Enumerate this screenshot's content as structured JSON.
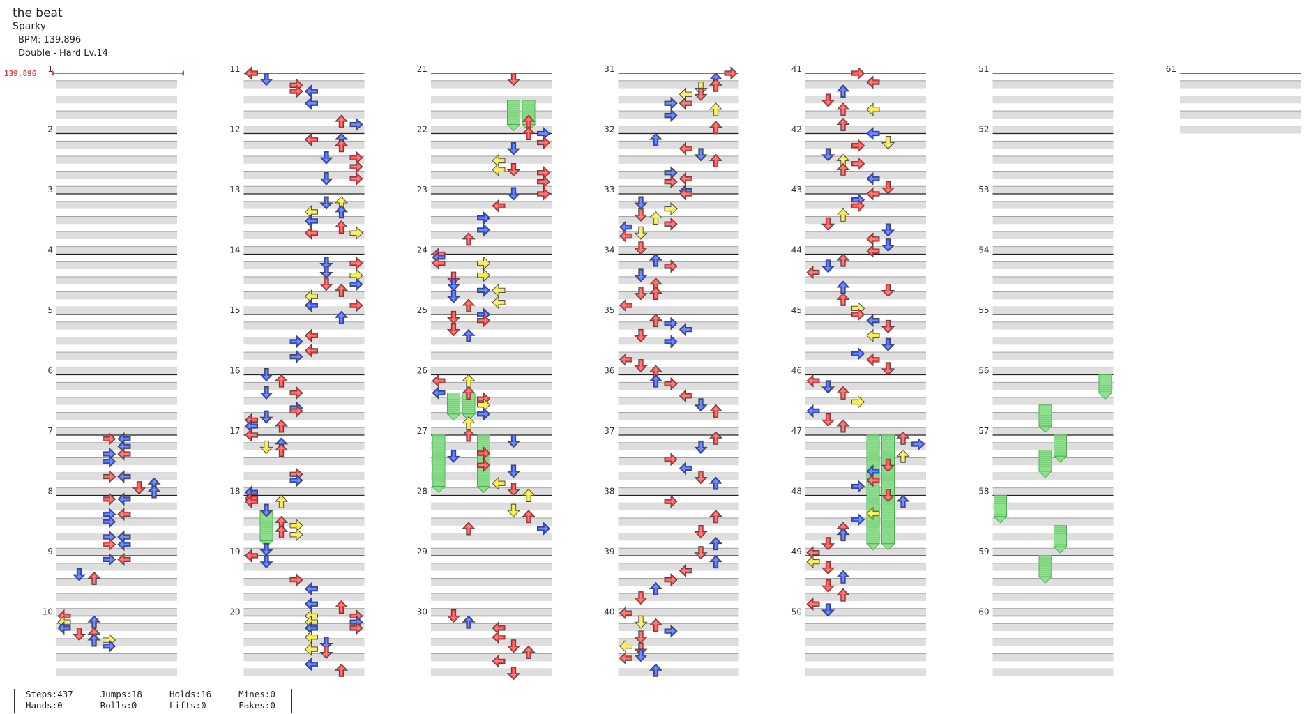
{
  "song": {
    "title": "the beat",
    "artist": "Sparky",
    "bpm_text": "BPM: 139.896",
    "difficulty_text": "Double - Hard  Lv.14"
  },
  "bpm_marker": "139.896",
  "measures": [
    "1",
    "2",
    "3",
    "4",
    "5",
    "6",
    "7",
    "8",
    "9",
    "10",
    "11",
    "12",
    "13",
    "14",
    "15",
    "16",
    "17",
    "18",
    "19",
    "20",
    "21",
    "22",
    "23",
    "24",
    "25",
    "26",
    "27",
    "28",
    "29",
    "30",
    "31",
    "32",
    "33",
    "34",
    "35",
    "36",
    "37",
    "38",
    "39",
    "40",
    "41",
    "42",
    "43",
    "44",
    "45",
    "46",
    "47",
    "48",
    "49",
    "50",
    "51",
    "52",
    "53",
    "54",
    "55",
    "56",
    "57",
    "58",
    "59",
    "60",
    "61"
  ],
  "stats": {
    "steps": "Steps:437",
    "hands": "Hands:0",
    "jumps": "Jumps:18",
    "rolls": "Rolls:0",
    "holds": "Holds:16",
    "lifts": "Lifts:0",
    "mines": "Mines:0",
    "fakes": "Fakes:0"
  },
  "colors": {
    "red": "#f03c3c",
    "blue": "#2f4fe6",
    "yellow": "#f2e83a",
    "hold": "#8ee08e",
    "band": "#dedede",
    "bpm": "#e53935"
  },
  "notes": [
    [
      7.0625,
      3,
      "red"
    ],
    [
      7.0625,
      4,
      "blue"
    ],
    [
      7.1875,
      4,
      "blue"
    ],
    [
      7.3125,
      3,
      "blue"
    ],
    [
      7.3125,
      4,
      "red"
    ],
    [
      7.4375,
      3,
      "blue"
    ],
    [
      7.6875,
      3,
      "red"
    ],
    [
      7.6875,
      4,
      "blue"
    ],
    [
      7.8125,
      6,
      "blue"
    ],
    [
      7.875,
      5,
      "red"
    ],
    [
      7.9375,
      6,
      "blue"
    ],
    [
      8.0625,
      3,
      "red"
    ],
    [
      8.0625,
      4,
      "blue"
    ],
    [
      8.3125,
      3,
      "blue"
    ],
    [
      8.3125,
      4,
      "red"
    ],
    [
      8.4375,
      3,
      "blue"
    ],
    [
      8.6875,
      3,
      "blue"
    ],
    [
      8.6875,
      4,
      "blue"
    ],
    [
      8.8125,
      3,
      "red"
    ],
    [
      8.8125,
      4,
      "blue"
    ],
    [
      9.0625,
      3,
      "blue"
    ],
    [
      9.0625,
      4,
      "red"
    ],
    [
      9.3125,
      1,
      "blue"
    ],
    [
      9.375,
      2,
      "red"
    ],
    [
      10.0,
      0,
      "red"
    ],
    [
      10.1,
      0,
      "yellow"
    ],
    [
      10.1,
      2,
      "blue"
    ],
    [
      10.2,
      0,
      "blue"
    ],
    [
      10.3,
      1,
      "red"
    ],
    [
      10.3,
      2,
      "red"
    ],
    [
      10.4,
      2,
      "blue"
    ],
    [
      10.4,
      3,
      "yellow"
    ],
    [
      10.5,
      3,
      "blue"
    ],
    [
      11.0,
      0,
      "red"
    ],
    [
      11.1,
      1,
      "blue"
    ],
    [
      11.2,
      3,
      "red"
    ],
    [
      11.3,
      3,
      "red"
    ],
    [
      11.3,
      4,
      "blue"
    ],
    [
      11.5,
      4,
      "blue"
    ],
    [
      11.8,
      6,
      "red"
    ],
    [
      11.85,
      7,
      "blue"
    ],
    [
      12.1,
      4,
      "red"
    ],
    [
      12.1,
      6,
      "blue"
    ],
    [
      12.2,
      6,
      "red"
    ],
    [
      12.4,
      5,
      "blue"
    ],
    [
      12.4,
      7,
      "red"
    ],
    [
      12.55,
      7,
      "red"
    ],
    [
      12.75,
      5,
      "blue"
    ],
    [
      12.75,
      7,
      "red"
    ],
    [
      13.15,
      5,
      "blue"
    ],
    [
      13.15,
      6,
      "yellow"
    ],
    [
      13.3,
      4,
      "yellow"
    ],
    [
      13.3,
      6,
      "blue"
    ],
    [
      13.45,
      4,
      "blue"
    ],
    [
      13.55,
      6,
      "red"
    ],
    [
      13.65,
      4,
      "red"
    ],
    [
      13.65,
      7,
      "yellow"
    ],
    [
      14.15,
      5,
      "blue"
    ],
    [
      14.15,
      7,
      "red"
    ],
    [
      14.3,
      5,
      "blue"
    ],
    [
      14.35,
      7,
      "yellow"
    ],
    [
      14.5,
      5,
      "red"
    ],
    [
      14.5,
      7,
      "blue"
    ],
    [
      14.6,
      6,
      "red"
    ],
    [
      14.7,
      4,
      "yellow"
    ],
    [
      14.85,
      4,
      "blue"
    ],
    [
      14.85,
      7,
      "red"
    ],
    [
      15.05,
      6,
      "blue"
    ],
    [
      15.35,
      4,
      "red"
    ],
    [
      15.45,
      3,
      "blue"
    ],
    [
      15.6,
      4,
      "red"
    ],
    [
      15.7,
      3,
      "blue"
    ],
    [
      16.0,
      1,
      "blue"
    ],
    [
      16.1,
      2,
      "red"
    ],
    [
      16.3,
      1,
      "blue"
    ],
    [
      16.3,
      3,
      "red"
    ],
    [
      16.55,
      3,
      "blue"
    ],
    [
      16.6,
      3,
      "red"
    ],
    [
      16.7,
      1,
      "blue"
    ],
    [
      16.75,
      0,
      "red"
    ],
    [
      16.85,
      0,
      "blue"
    ],
    [
      16.85,
      2,
      "red"
    ],
    [
      17.0,
      0,
      "red"
    ],
    [
      17.15,
      2,
      "blue"
    ],
    [
      17.2,
      1,
      "yellow"
    ],
    [
      17.25,
      2,
      "red"
    ],
    [
      17.65,
      3,
      "red"
    ],
    [
      17.75,
      3,
      "blue"
    ],
    [
      17.95,
      0,
      "blue"
    ],
    [
      18.05,
      0,
      "red"
    ],
    [
      18.1,
      2,
      "yellow"
    ],
    [
      18.1,
      0,
      "red"
    ],
    [
      18.25,
      1,
      "blue"
    ],
    [
      18.45,
      2,
      "red"
    ],
    [
      18.5,
      3,
      "yellow"
    ],
    [
      18.6,
      2,
      "red"
    ],
    [
      18.65,
      3,
      "yellow"
    ],
    [
      18.9,
      1,
      "blue"
    ],
    [
      19.0,
      0,
      "red"
    ],
    [
      19.1,
      1,
      "blue"
    ],
    [
      19.4,
      3,
      "red"
    ],
    [
      19.55,
      4,
      "blue"
    ],
    [
      19.8,
      4,
      "blue"
    ],
    [
      19.85,
      6,
      "red"
    ],
    [
      20.0,
      4,
      "yellow"
    ],
    [
      20.0,
      7,
      "red"
    ],
    [
      20.1,
      4,
      "yellow"
    ],
    [
      20.1,
      7,
      "blue"
    ],
    [
      20.2,
      4,
      "blue"
    ],
    [
      20.2,
      7,
      "red"
    ],
    [
      20.35,
      4,
      "yellow"
    ],
    [
      20.45,
      5,
      "blue"
    ],
    [
      20.55,
      4,
      "yellow"
    ],
    [
      20.6,
      5,
      "red"
    ],
    [
      20.8,
      4,
      "blue"
    ],
    [
      20.9,
      6,
      "red"
    ],
    [
      21.1,
      5,
      "red"
    ],
    [
      21.8,
      6,
      "red"
    ],
    [
      22.0,
      6,
      "red"
    ],
    [
      22.0,
      7,
      "blue"
    ],
    [
      22.15,
      7,
      "red"
    ],
    [
      22.25,
      5,
      "blue"
    ],
    [
      22.45,
      4,
      "yellow"
    ],
    [
      22.6,
      4,
      "yellow"
    ],
    [
      22.6,
      5,
      "red"
    ],
    [
      22.65,
      7,
      "red"
    ],
    [
      22.8,
      7,
      "red"
    ],
    [
      23.0,
      5,
      "blue"
    ],
    [
      23.0,
      7,
      "red"
    ],
    [
      23.2,
      4,
      "red"
    ],
    [
      23.4,
      3,
      "blue"
    ],
    [
      23.6,
      3,
      "blue"
    ],
    [
      23.75,
      2,
      "red"
    ],
    [
      24.0,
      0,
      "red"
    ],
    [
      24.05,
      0,
      "blue"
    ],
    [
      24.15,
      0,
      "red"
    ],
    [
      24.15,
      3,
      "yellow"
    ],
    [
      24.35,
      3,
      "yellow"
    ],
    [
      24.4,
      1,
      "red"
    ],
    [
      24.5,
      1,
      "blue"
    ],
    [
      24.6,
      3,
      "blue"
    ],
    [
      24.6,
      4,
      "yellow"
    ],
    [
      24.7,
      1,
      "blue"
    ],
    [
      24.8,
      4,
      "yellow"
    ],
    [
      24.85,
      2,
      "red"
    ],
    [
      25.0,
      3,
      "blue"
    ],
    [
      25.05,
      1,
      "red"
    ],
    [
      25.1,
      3,
      "red"
    ],
    [
      25.25,
      1,
      "red"
    ],
    [
      25.35,
      2,
      "blue"
    ],
    [
      26.1,
      0,
      "red"
    ],
    [
      26.1,
      2,
      "yellow"
    ],
    [
      26.3,
      0,
      "blue"
    ],
    [
      26.3,
      2,
      "red"
    ],
    [
      26.4,
      3,
      "red"
    ],
    [
      26.5,
      3,
      "yellow"
    ],
    [
      26.65,
      3,
      "blue"
    ],
    [
      26.8,
      2,
      "yellow"
    ],
    [
      27.0,
      2,
      "red"
    ],
    [
      27.1,
      5,
      "blue"
    ],
    [
      27.3,
      3,
      "red"
    ],
    [
      27.35,
      1,
      "blue"
    ],
    [
      27.5,
      3,
      "red"
    ],
    [
      27.6,
      5,
      "blue"
    ],
    [
      27.8,
      4,
      "yellow"
    ],
    [
      27.9,
      5,
      "red"
    ],
    [
      28.0,
      6,
      "yellow"
    ],
    [
      28.25,
      5,
      "yellow"
    ],
    [
      28.35,
      6,
      "red"
    ],
    [
      28.55,
      7,
      "blue"
    ],
    [
      28.55,
      2,
      "red"
    ],
    [
      30.0,
      1,
      "red"
    ],
    [
      30.1,
      2,
      "blue"
    ],
    [
      30.2,
      4,
      "red"
    ],
    [
      30.35,
      4,
      "red"
    ],
    [
      30.5,
      5,
      "red"
    ],
    [
      30.6,
      6,
      "red"
    ],
    [
      30.75,
      4,
      "red"
    ],
    [
      30.95,
      5,
      "red"
    ],
    [
      31.0,
      7,
      "red"
    ],
    [
      31.1,
      6,
      "blue"
    ],
    [
      31.2,
      6,
      "red"
    ],
    [
      31.25,
      5,
      "yellow"
    ],
    [
      31.35,
      4,
      "yellow"
    ],
    [
      31.35,
      5,
      "red"
    ],
    [
      31.5,
      3,
      "blue"
    ],
    [
      31.5,
      4,
      "red"
    ],
    [
      31.6,
      6,
      "yellow"
    ],
    [
      31.7,
      3,
      "blue"
    ],
    [
      31.9,
      6,
      "red"
    ],
    [
      32.1,
      2,
      "blue"
    ],
    [
      32.25,
      4,
      "red"
    ],
    [
      32.35,
      5,
      "blue"
    ],
    [
      32.45,
      6,
      "red"
    ],
    [
      32.65,
      3,
      "blue"
    ],
    [
      32.75,
      4,
      "red"
    ],
    [
      32.8,
      3,
      "red"
    ],
    [
      32.95,
      4,
      "blue"
    ],
    [
      33.0,
      4,
      "red"
    ],
    [
      33.15,
      1,
      "blue"
    ],
    [
      33.25,
      3,
      "yellow"
    ],
    [
      33.35,
      1,
      "red"
    ],
    [
      33.4,
      2,
      "yellow"
    ],
    [
      33.5,
      3,
      "red"
    ],
    [
      33.55,
      0,
      "blue"
    ],
    [
      33.65,
      1,
      "yellow"
    ],
    [
      33.7,
      0,
      "red"
    ],
    [
      33.9,
      1,
      "red"
    ],
    [
      34.1,
      2,
      "blue"
    ],
    [
      34.2,
      3,
      "red"
    ],
    [
      34.35,
      1,
      "blue"
    ],
    [
      34.5,
      2,
      "red"
    ],
    [
      34.65,
      1,
      "red"
    ],
    [
      34.65,
      2,
      "red"
    ],
    [
      34.85,
      0,
      "red"
    ],
    [
      35.1,
      2,
      "red"
    ],
    [
      35.15,
      3,
      "blue"
    ],
    [
      35.25,
      4,
      "blue"
    ],
    [
      35.35,
      1,
      "red"
    ],
    [
      35.45,
      3,
      "blue"
    ],
    [
      35.75,
      0,
      "red"
    ],
    [
      35.85,
      1,
      "red"
    ],
    [
      35.95,
      2,
      "red"
    ],
    [
      36.1,
      2,
      "blue"
    ],
    [
      36.15,
      3,
      "red"
    ],
    [
      36.35,
      4,
      "red"
    ],
    [
      36.5,
      5,
      "blue"
    ],
    [
      36.6,
      6,
      "red"
    ],
    [
      37.05,
      6,
      "red"
    ],
    [
      37.2,
      5,
      "blue"
    ],
    [
      37.4,
      3,
      "red"
    ],
    [
      37.55,
      4,
      "blue"
    ],
    [
      37.7,
      5,
      "red"
    ],
    [
      37.8,
      6,
      "blue"
    ],
    [
      38.1,
      3,
      "red"
    ],
    [
      38.35,
      6,
      "red"
    ],
    [
      38.6,
      5,
      "red"
    ],
    [
      38.8,
      6,
      "blue"
    ],
    [
      38.95,
      5,
      "red"
    ],
    [
      39.1,
      6,
      "blue"
    ],
    [
      39.25,
      4,
      "red"
    ],
    [
      39.4,
      3,
      "red"
    ],
    [
      39.55,
      2,
      "blue"
    ],
    [
      39.7,
      1,
      "red"
    ],
    [
      39.95,
      0,
      "red"
    ],
    [
      40.1,
      1,
      "yellow"
    ],
    [
      40.15,
      2,
      "red"
    ],
    [
      40.25,
      3,
      "blue"
    ],
    [
      40.35,
      1,
      "red"
    ],
    [
      40.5,
      0,
      "yellow"
    ],
    [
      40.55,
      1,
      "red"
    ],
    [
      40.65,
      1,
      "blue"
    ],
    [
      40.7,
      0,
      "red"
    ],
    [
      40.9,
      2,
      "blue"
    ],
    [
      41.0,
      3,
      "red"
    ],
    [
      41.15,
      4,
      "red"
    ],
    [
      41.3,
      2,
      "blue"
    ],
    [
      41.45,
      1,
      "red"
    ],
    [
      41.6,
      4,
      "yellow"
    ],
    [
      41.6,
      2,
      "red"
    ],
    [
      41.85,
      2,
      "red"
    ],
    [
      42.0,
      4,
      "blue"
    ],
    [
      42.15,
      5,
      "yellow"
    ],
    [
      42.2,
      3,
      "red"
    ],
    [
      42.35,
      1,
      "blue"
    ],
    [
      42.45,
      2,
      "yellow"
    ],
    [
      42.5,
      3,
      "red"
    ],
    [
      42.6,
      2,
      "red"
    ],
    [
      42.75,
      4,
      "blue"
    ],
    [
      42.9,
      5,
      "red"
    ],
    [
      43.0,
      4,
      "red"
    ],
    [
      43.1,
      3,
      "blue"
    ],
    [
      43.2,
      3,
      "red"
    ],
    [
      43.35,
      2,
      "yellow"
    ],
    [
      43.5,
      1,
      "red"
    ],
    [
      43.6,
      5,
      "blue"
    ],
    [
      43.75,
      4,
      "red"
    ],
    [
      43.85,
      5,
      "blue"
    ],
    [
      43.95,
      4,
      "red"
    ],
    [
      44.1,
      2,
      "red"
    ],
    [
      44.2,
      1,
      "blue"
    ],
    [
      44.3,
      0,
      "red"
    ],
    [
      44.55,
      2,
      "blue"
    ],
    [
      44.6,
      5,
      "red"
    ],
    [
      44.75,
      2,
      "red"
    ],
    [
      44.9,
      3,
      "yellow"
    ],
    [
      45.0,
      3,
      "red"
    ],
    [
      45.1,
      4,
      "blue"
    ],
    [
      45.2,
      5,
      "red"
    ],
    [
      45.35,
      4,
      "yellow"
    ],
    [
      45.5,
      5,
      "blue"
    ],
    [
      45.65,
      3,
      "blue"
    ],
    [
      45.75,
      4,
      "red"
    ],
    [
      45.9,
      5,
      "red"
    ],
    [
      46.1,
      0,
      "red"
    ],
    [
      46.2,
      1,
      "blue"
    ],
    [
      46.3,
      2,
      "red"
    ],
    [
      46.45,
      3,
      "yellow"
    ],
    [
      46.6,
      0,
      "blue"
    ],
    [
      46.75,
      1,
      "red"
    ],
    [
      46.85,
      2,
      "red"
    ],
    [
      47.05,
      6,
      "red"
    ],
    [
      47.15,
      7,
      "blue"
    ],
    [
      47.35,
      6,
      "yellow"
    ],
    [
      47.5,
      5,
      "red"
    ],
    [
      47.6,
      4,
      "blue"
    ],
    [
      47.75,
      4,
      "red"
    ],
    [
      47.85,
      3,
      "blue"
    ],
    [
      48.0,
      5,
      "red"
    ],
    [
      48.1,
      6,
      "blue"
    ],
    [
      48.3,
      4,
      "yellow"
    ],
    [
      48.4,
      3,
      "blue"
    ],
    [
      48.55,
      2,
      "red"
    ],
    [
      48.65,
      2,
      "blue"
    ],
    [
      48.8,
      1,
      "red"
    ],
    [
      48.95,
      0,
      "red"
    ],
    [
      49.1,
      0,
      "yellow"
    ],
    [
      49.2,
      1,
      "red"
    ],
    [
      49.35,
      2,
      "blue"
    ],
    [
      49.5,
      1,
      "red"
    ],
    [
      49.65,
      2,
      "red"
    ],
    [
      49.8,
      0,
      "red"
    ],
    [
      49.9,
      1,
      "blue"
    ]
  ],
  "holds": [
    [
      18.25,
      18.75,
      1,
      "hold"
    ],
    [
      21.45,
      21.85,
      5,
      "hold"
    ],
    [
      21.45,
      21.85,
      6,
      "hold"
    ],
    [
      26.3,
      26.65,
      1,
      "hold"
    ],
    [
      26.3,
      26.65,
      2,
      "hold"
    ],
    [
      27.0,
      27.85,
      0,
      "hold"
    ],
    [
      27.0,
      27.85,
      3,
      "hold"
    ],
    [
      47.0,
      48.8,
      4,
      "hold"
    ],
    [
      47.0,
      48.8,
      5,
      "hold"
    ],
    [
      56.0,
      56.3,
      7,
      "hold"
    ],
    [
      56.5,
      56.85,
      3,
      "hold"
    ],
    [
      57.0,
      57.35,
      4,
      "hold"
    ],
    [
      57.25,
      57.6,
      3,
      "hold"
    ],
    [
      58.0,
      58.35,
      0,
      "hold"
    ],
    [
      58.5,
      58.85,
      4,
      "hold"
    ],
    [
      59.0,
      59.35,
      3,
      "hold"
    ]
  ]
}
